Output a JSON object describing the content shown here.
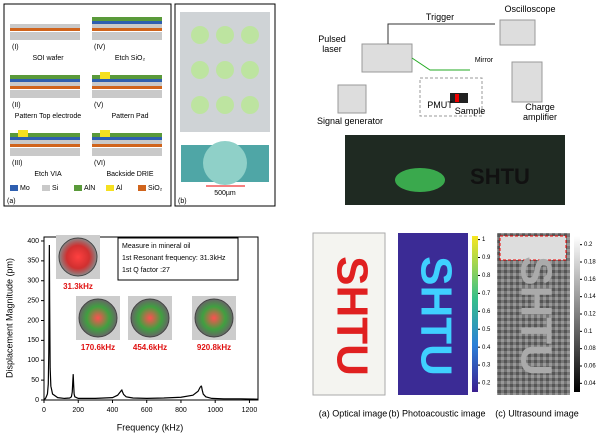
{
  "fabrication": {
    "panel_label": "(a)",
    "steps": [
      {
        "numeral": "(I)",
        "label": "SOI wafer"
      },
      {
        "numeral": "(IV)",
        "label": "Etch SiO₂"
      },
      {
        "numeral": "(II)",
        "label": "Pattern Top electrode"
      },
      {
        "numeral": "(V)",
        "label": "Pattern Pad"
      },
      {
        "numeral": "(III)",
        "label": "Etch VIA"
      },
      {
        "numeral": "(VI)",
        "label": "Backside DRIE"
      }
    ],
    "legend": [
      {
        "name": "Mo",
        "color": "#2e5fb0"
      },
      {
        "name": "Si",
        "color": "#c9c9c9"
      },
      {
        "name": "AlN",
        "color": "#5a9a3a"
      },
      {
        "name": "Al",
        "color": "#f5e020"
      },
      {
        "name": "SiO₂",
        "color": "#d0641c"
      }
    ]
  },
  "wafer": {
    "panel_label": "(b)",
    "scale": "500µm"
  },
  "setup": {
    "labels": {
      "trigger": "Trigger",
      "oscilloscope": "Oscilloscope",
      "laser": "Pulsed\nlaser",
      "mirror": "Mirror",
      "signal_generator": "Signal generator",
      "pmut": "PMUT",
      "sample": "Sample",
      "amplifier": "Charge\namplifier"
    },
    "sample_text": "SHTU"
  },
  "chart_data": {
    "type": "line",
    "xlabel": "Frequency (kHz)",
    "ylabel": "Displacement Magnitude (pm)",
    "color": "#000000",
    "x": [
      0,
      10,
      20,
      25,
      28,
      30,
      31.3,
      33,
      36,
      40,
      50,
      80,
      120,
      150,
      160,
      165,
      168,
      170.6,
      173,
      176,
      180,
      200,
      300,
      400,
      430,
      445,
      452,
      454.6,
      457,
      465,
      480,
      520,
      600,
      700,
      800,
      870,
      900,
      912,
      918,
      920.8,
      924,
      930,
      945,
      980,
      1050,
      1150,
      1250
    ],
    "values": [
      0,
      5,
      15,
      40,
      120,
      300,
      390,
      250,
      80,
      35,
      15,
      6,
      4,
      5,
      8,
      20,
      45,
      65,
      40,
      15,
      8,
      4,
      4,
      6,
      12,
      20,
      24,
      25,
      22,
      14,
      8,
      5,
      4,
      5,
      7,
      12,
      22,
      32,
      35,
      33,
      25,
      15,
      8,
      4,
      3,
      3,
      2
    ],
    "xlim": [
      0,
      1250
    ],
    "ylim": [
      0,
      410
    ],
    "xticks": [
      0,
      200,
      400,
      600,
      800,
      1000,
      1200
    ],
    "yticks": [
      0,
      50,
      100,
      150,
      200,
      250,
      300,
      350,
      400
    ],
    "annotation": [
      "Measure in mineral oil",
      "1st Resonant frequency: 31.3kHz",
      "1st Q factor :27"
    ],
    "peak_labels": [
      "31.3kHz",
      "170.6kHz",
      "454.6kHz",
      "920.8kHz"
    ]
  },
  "images": {
    "optical": {
      "caption": "(a) Optical image"
    },
    "photoacoustic": {
      "caption": "(b) Photoacoustic image",
      "lim": [
        0.15,
        1.02
      ],
      "ticks": [
        0.2,
        0.3,
        0.4,
        0.5,
        0.6,
        0.7,
        0.8,
        0.9,
        1
      ]
    },
    "ultrasound": {
      "caption": "(c) Ultrasound image",
      "lim": [
        0.03,
        0.21
      ],
      "ticks": [
        0.04,
        0.06,
        0.08,
        0.1,
        0.12,
        0.14,
        0.16,
        0.18,
        0.2
      ]
    }
  }
}
